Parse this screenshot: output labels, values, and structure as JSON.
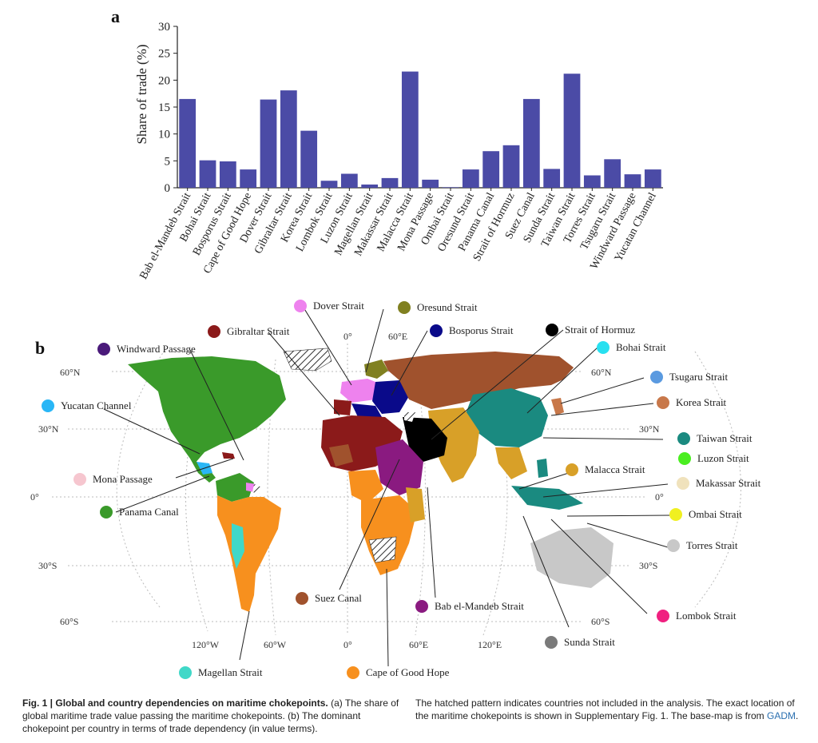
{
  "panel_a_letter": "a",
  "panel_b_letter": "b",
  "chart_data": {
    "type": "bar",
    "ylabel": "Share of trade (%)",
    "ylim": [
      0,
      30
    ],
    "yticks": [
      0,
      5,
      10,
      15,
      20,
      25,
      30
    ],
    "bar_color": "#4b4ba6",
    "categories": [
      "Bab el-Mandeb Strait",
      "Bohai Strait",
      "Bosporus Strait",
      "Cape of Good Hope",
      "Dover Strait",
      "Gibraltar Strait",
      "Korea Strait",
      "Lombok Strait",
      "Luzon Strait",
      "Magellan Strait",
      "Makassar Strait",
      "Malacca Strait",
      "Mona Passage",
      "Ombai Strait",
      "Oresund Strait",
      "Panama Canal",
      "Strait of Hormuz",
      "Suez Canal",
      "Sunda Strait",
      "Taiwan Strait",
      "Torres Strait",
      "Tsugaru Strait",
      "Windward Passage",
      "Yucatan Channel"
    ],
    "values": [
      16.5,
      5.1,
      4.9,
      3.4,
      16.4,
      18.1,
      10.6,
      1.3,
      2.6,
      0.6,
      1.8,
      21.6,
      1.5,
      0.1,
      3.4,
      6.8,
      7.9,
      16.5,
      3.5,
      21.2,
      2.3,
      5.3,
      2.5,
      3.4
    ]
  },
  "map": {
    "graticule": {
      "lat_left": [
        "60°N",
        "30°N",
        "0°",
        "30°S",
        "60°S"
      ],
      "lat_right": [
        "60°N",
        "30°N",
        "0°",
        "30°S",
        "60°S"
      ],
      "lon_bottom": [
        "120°W",
        "60°W",
        "0°",
        "60°E",
        "120°E"
      ],
      "lon_top": [
        "0°",
        "60°E"
      ]
    },
    "legend": [
      {
        "name": "Windward Passage",
        "color": "#4a1a7a"
      },
      {
        "name": "Yucatan Channel",
        "color": "#29b6f6"
      },
      {
        "name": "Mona Passage",
        "color": "#f6c6cf"
      },
      {
        "name": "Panama Canal",
        "color": "#3a9a2a"
      },
      {
        "name": "Gibraltar Strait",
        "color": "#8b1a1a"
      },
      {
        "name": "Dover Strait",
        "color": "#ee82ee"
      },
      {
        "name": "Oresund Strait",
        "color": "#808020"
      },
      {
        "name": "Bosporus Strait",
        "color": "#0a0a8a"
      },
      {
        "name": "Strait of Hormuz",
        "color": "#000000"
      },
      {
        "name": "Bohai Strait",
        "color": "#28e0f0"
      },
      {
        "name": "Tsugaru Strait",
        "color": "#5a9ae0"
      },
      {
        "name": "Korea Strait",
        "color": "#c8784a"
      },
      {
        "name": "Taiwan Strait",
        "color": "#1a8a80"
      },
      {
        "name": "Luzon Strait",
        "color": "#4aee20"
      },
      {
        "name": "Malacca Strait",
        "color": "#d8a028"
      },
      {
        "name": "Makassar Strait",
        "color": "#f0e2bc"
      },
      {
        "name": "Ombai Strait",
        "color": "#f0f020"
      },
      {
        "name": "Torres Strait",
        "color": "#c8c8c8"
      },
      {
        "name": "Lombok Strait",
        "color": "#f02080"
      },
      {
        "name": "Sunda Strait",
        "color": "#7a7a7a"
      },
      {
        "name": "Suez Canal",
        "color": "#a0522d"
      },
      {
        "name": "Bab el-Mandeb Strait",
        "color": "#8a1a80"
      },
      {
        "name": "Magellan Strait",
        "color": "#40d8c8"
      },
      {
        "name": "Cape of Good Hope",
        "color": "#f7901e"
      }
    ]
  },
  "caption": {
    "bold": "Fig. 1 | Global and country dependencies on maritime chokepoints.",
    "left_text": " (a) The share of global maritime trade value passing the maritime chokepoints. (b) The dominant chokepoint per country in terms of trade dependency (in value terms).",
    "right_text": "The hatched pattern indicates countries not included in the analysis. The exact location of the maritime chokepoints is shown in Supplementary Fig. 1. The base-map is from ",
    "link_text": "GADM",
    "end": "."
  }
}
